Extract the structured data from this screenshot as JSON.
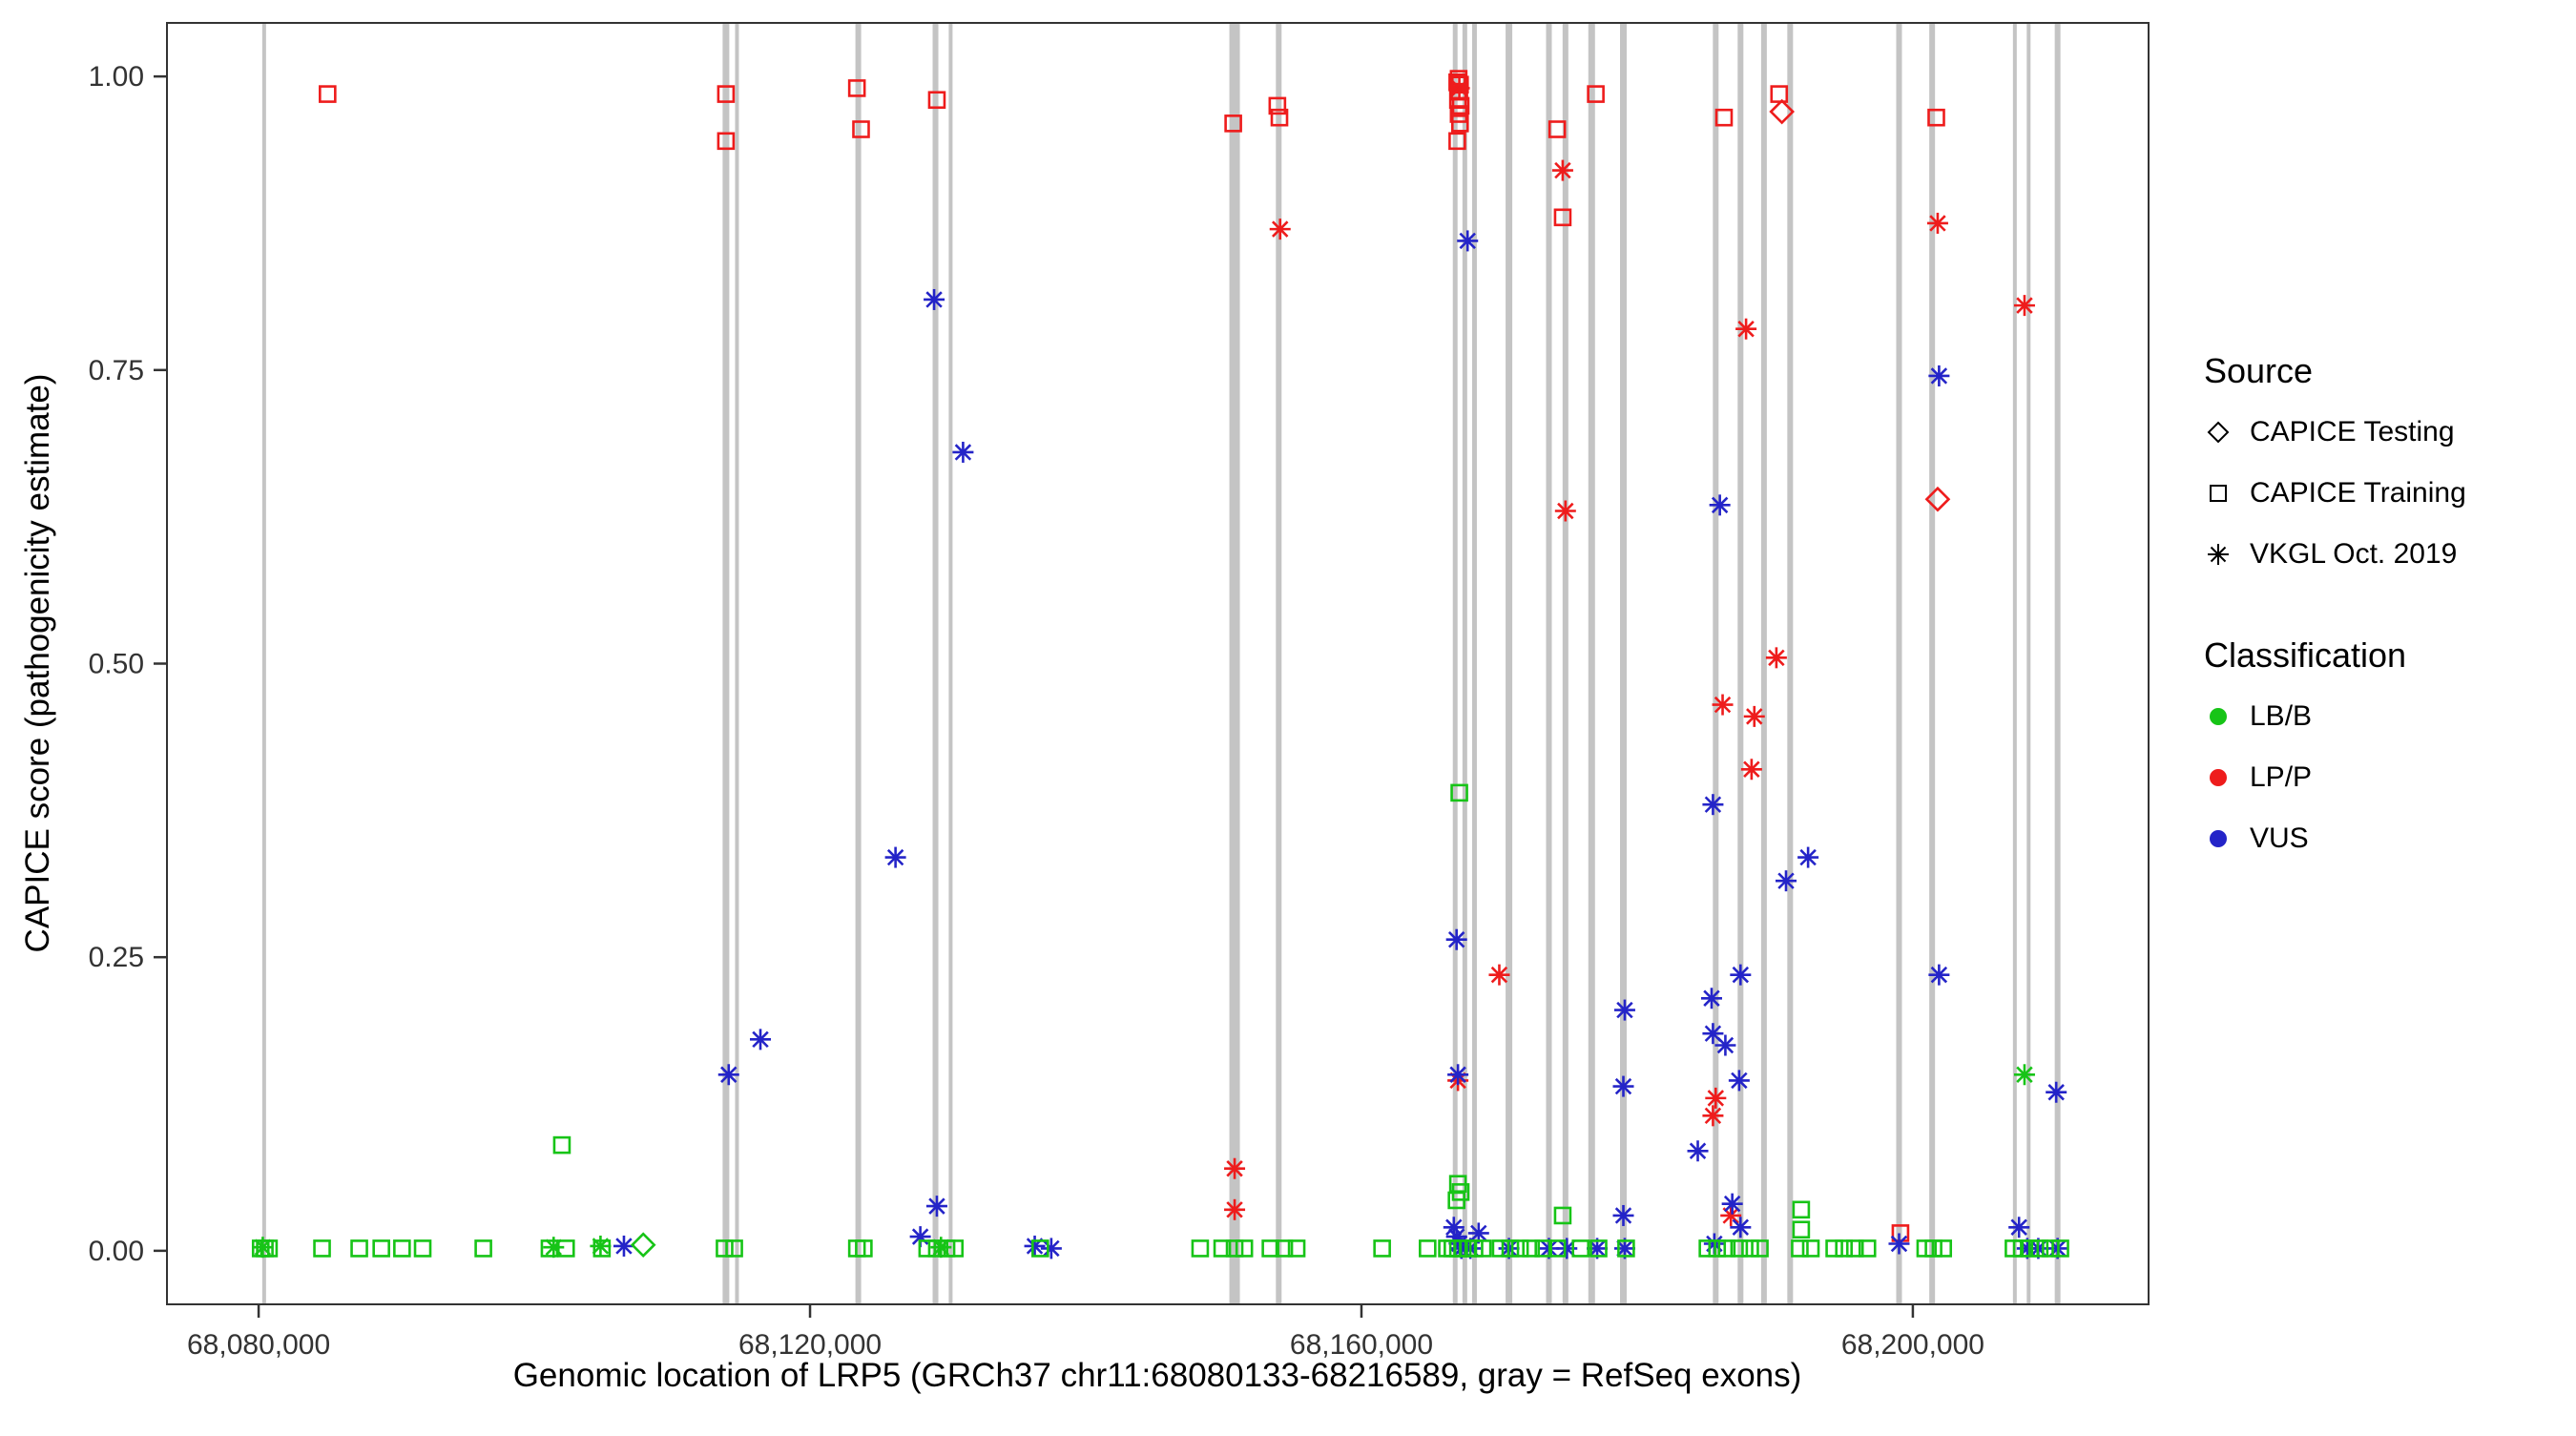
{
  "figure": {
    "x_axis": {
      "title": "Genomic location of LRP5 (GRCh37 chr11:68080133-68216589, gray = RefSeq exons)",
      "ticks": [
        {
          "value": 68080000,
          "label": "68,080,000"
        },
        {
          "value": 68120000,
          "label": "68,120,000"
        },
        {
          "value": 68160000,
          "label": "68,160,000"
        },
        {
          "value": 68200000,
          "label": "68,200,000"
        }
      ]
    },
    "y_axis": {
      "title": "CAPICE score (pathogenicity estimate)",
      "ticks": [
        {
          "value": 0.0,
          "label": "0.00"
        },
        {
          "value": 0.25,
          "label": "0.25"
        },
        {
          "value": 0.5,
          "label": "0.50"
        },
        {
          "value": 0.75,
          "label": "0.75"
        },
        {
          "value": 1.0,
          "label": "1.00"
        }
      ]
    },
    "legend": {
      "source": {
        "title": "Source",
        "items": [
          {
            "label": "CAPICE Testing",
            "glyph": "diamond"
          },
          {
            "label": "CAPICE Training",
            "glyph": "square"
          },
          {
            "label": "VKGL Oct. 2019",
            "glyph": "asterisk"
          }
        ]
      },
      "classification": {
        "title": "Classification",
        "items": [
          {
            "label": "LB/B",
            "color": "#17c417"
          },
          {
            "label": "LP/P",
            "color": "#ee1c1c"
          },
          {
            "label": "VUS",
            "color": "#2424c8"
          }
        ]
      }
    },
    "colors": {
      "exon_gray": "#c4c4c4",
      "panel_border": "#333333",
      "lbb_green": "#17c417",
      "lpp_red": "#ee1c1c",
      "vus_blue": "#2424c8"
    }
  },
  "chart_data": {
    "type": "scatter",
    "title": "",
    "xlabel": "Genomic location of LRP5 (GRCh37 chr11:68080133-68216589, gray = RefSeq exons)",
    "ylabel": "CAPICE score (pathogenicity estimate)",
    "xlim": [
      68073350,
      68217100
    ],
    "ylim": [
      -0.0456,
      1.0456
    ],
    "grid": false,
    "legend_position": "right",
    "exons": [
      [
        68080400,
        4
      ],
      [
        68113900,
        7
      ],
      [
        68114700,
        4
      ],
      [
        68123500,
        6
      ],
      [
        68129100,
        6
      ],
      [
        68130200,
        4
      ],
      [
        68150800,
        11
      ],
      [
        68154000,
        6
      ],
      [
        68166800,
        5
      ],
      [
        68167500,
        5
      ],
      [
        68168200,
        5
      ],
      [
        68170700,
        7
      ],
      [
        68173600,
        6
      ],
      [
        68174800,
        6
      ],
      [
        68176700,
        7
      ],
      [
        68179000,
        7
      ],
      [
        68185700,
        6
      ],
      [
        68187500,
        6
      ],
      [
        68189200,
        6
      ],
      [
        68191100,
        6
      ],
      [
        68199000,
        6
      ],
      [
        68201400,
        6
      ],
      [
        68207400,
        4
      ],
      [
        68208400,
        4
      ],
      [
        68210500,
        6
      ]
    ],
    "points": [
      [
        68085000,
        0.985,
        "training",
        "LP/P"
      ],
      [
        68113900,
        0.985,
        "training",
        "LP/P"
      ],
      [
        68113900,
        0.945,
        "training",
        "LP/P"
      ],
      [
        68123400,
        0.99,
        "training",
        "LP/P"
      ],
      [
        68123700,
        0.955,
        "training",
        "LP/P"
      ],
      [
        68129200,
        0.98,
        "training",
        "LP/P"
      ],
      [
        68150700,
        0.96,
        "training",
        "LP/P"
      ],
      [
        68153900,
        0.975,
        "training",
        "LP/P"
      ],
      [
        68154050,
        0.965,
        "training",
        "LP/P"
      ],
      [
        68166950,
        0.995,
        "training",
        "LP/P"
      ],
      [
        68167050,
        0.998,
        "training",
        "LP/P"
      ],
      [
        68167150,
        0.993,
        "training",
        "LP/P"
      ],
      [
        68167100,
        0.987,
        "training",
        "LP/P"
      ],
      [
        68167000,
        0.98,
        "training",
        "LP/P"
      ],
      [
        68167200,
        0.975,
        "training",
        "LP/P"
      ],
      [
        68167050,
        0.968,
        "training",
        "LP/P"
      ],
      [
        68167150,
        0.96,
        "training",
        "LP/P"
      ],
      [
        68166950,
        0.945,
        "training",
        "LP/P"
      ],
      [
        68174200,
        0.955,
        "training",
        "LP/P"
      ],
      [
        68174600,
        0.88,
        "training",
        "LP/P"
      ],
      [
        68177000,
        0.985,
        "training",
        "LP/P"
      ],
      [
        68186300,
        0.965,
        "training",
        "LP/P"
      ],
      [
        68190300,
        0.985,
        "training",
        "LP/P"
      ],
      [
        68201700,
        0.965,
        "training",
        "LP/P"
      ],
      [
        68199100,
        0.015,
        "training",
        "LP/P"
      ],
      [
        68190500,
        0.97,
        "testing",
        "LP/P"
      ],
      [
        68201800,
        0.64,
        "testing",
        "LP/P"
      ],
      [
        68154100,
        0.87,
        "vkgl",
        "LP/P"
      ],
      [
        68167100,
        0.99,
        "vkgl",
        "LP/P"
      ],
      [
        68174600,
        0.92,
        "vkgl",
        "LP/P"
      ],
      [
        68174800,
        0.63,
        "vkgl",
        "LP/P"
      ],
      [
        68170000,
        0.235,
        "vkgl",
        "LP/P"
      ],
      [
        68167000,
        0.145,
        "vkgl",
        "LP/P"
      ],
      [
        68187900,
        0.785,
        "vkgl",
        "LP/P"
      ],
      [
        68186200,
        0.465,
        "vkgl",
        "LP/P"
      ],
      [
        68188500,
        0.455,
        "vkgl",
        "LP/P"
      ],
      [
        68190100,
        0.505,
        "vkgl",
        "LP/P"
      ],
      [
        68188300,
        0.41,
        "vkgl",
        "LP/P"
      ],
      [
        68185700,
        0.13,
        "vkgl",
        "LP/P"
      ],
      [
        68185500,
        0.115,
        "vkgl",
        "LP/P"
      ],
      [
        68186800,
        0.03,
        "vkgl",
        "LP/P"
      ],
      [
        68201800,
        0.875,
        "vkgl",
        "LP/P"
      ],
      [
        68208100,
        0.805,
        "vkgl",
        "LP/P"
      ],
      [
        68150800,
        0.07,
        "vkgl",
        "LP/P"
      ],
      [
        68150800,
        0.035,
        "vkgl",
        "LP/P"
      ],
      [
        68129000,
        0.81,
        "vkgl",
        "VUS"
      ],
      [
        68131100,
        0.68,
        "vkgl",
        "VUS"
      ],
      [
        68126200,
        0.335,
        "vkgl",
        "VUS"
      ],
      [
        68116400,
        0.18,
        "vkgl",
        "VUS"
      ],
      [
        68114100,
        0.15,
        "vkgl",
        "VUS"
      ],
      [
        68167700,
        0.86,
        "vkgl",
        "VUS"
      ],
      [
        68166900,
        0.265,
        "vkgl",
        "VUS"
      ],
      [
        68167000,
        0.15,
        "vkgl",
        "VUS"
      ],
      [
        68179100,
        0.205,
        "vkgl",
        "VUS"
      ],
      [
        68179000,
        0.14,
        "vkgl",
        "VUS"
      ],
      [
        68186000,
        0.635,
        "vkgl",
        "VUS"
      ],
      [
        68185500,
        0.38,
        "vkgl",
        "VUS"
      ],
      [
        68192400,
        0.335,
        "vkgl",
        "VUS"
      ],
      [
        68190800,
        0.315,
        "vkgl",
        "VUS"
      ],
      [
        68187500,
        0.235,
        "vkgl",
        "VUS"
      ],
      [
        68185400,
        0.215,
        "vkgl",
        "VUS"
      ],
      [
        68185500,
        0.185,
        "vkgl",
        "VUS"
      ],
      [
        68186400,
        0.175,
        "vkgl",
        "VUS"
      ],
      [
        68187400,
        0.145,
        "vkgl",
        "VUS"
      ],
      [
        68184400,
        0.085,
        "vkgl",
        "VUS"
      ],
      [
        68186900,
        0.04,
        "vkgl",
        "VUS"
      ],
      [
        68201900,
        0.745,
        "vkgl",
        "VUS"
      ],
      [
        68201900,
        0.235,
        "vkgl",
        "VUS"
      ],
      [
        68210400,
        0.135,
        "vkgl",
        "VUS"
      ],
      [
        68128000,
        0.012,
        "vkgl",
        "VUS"
      ],
      [
        68129200,
        0.038,
        "vkgl",
        "VUS"
      ],
      [
        68106500,
        0.004,
        "vkgl",
        "VUS"
      ],
      [
        68136300,
        0.004,
        "vkgl",
        "VUS"
      ],
      [
        68137500,
        0.002,
        "vkgl",
        "VUS"
      ],
      [
        68166700,
        0.02,
        "vkgl",
        "VUS"
      ],
      [
        68166900,
        0.012,
        "vkgl",
        "VUS"
      ],
      [
        68167100,
        0.006,
        "vkgl",
        "VUS"
      ],
      [
        68167250,
        0.002,
        "vkgl",
        "VUS"
      ],
      [
        68167900,
        0.002,
        "vkgl",
        "VUS"
      ],
      [
        68168500,
        0.015,
        "vkgl",
        "VUS"
      ],
      [
        68170700,
        0.002,
        "vkgl",
        "VUS"
      ],
      [
        68173600,
        0.002,
        "vkgl",
        "VUS"
      ],
      [
        68174900,
        0.002,
        "vkgl",
        "VUS"
      ],
      [
        68177100,
        0.002,
        "vkgl",
        "VUS"
      ],
      [
        68179000,
        0.03,
        "vkgl",
        "VUS"
      ],
      [
        68179100,
        0.002,
        "vkgl",
        "VUS"
      ],
      [
        68185600,
        0.006,
        "vkgl",
        "VUS"
      ],
      [
        68187500,
        0.02,
        "vkgl",
        "VUS"
      ],
      [
        68199000,
        0.006,
        "vkgl",
        "VUS"
      ],
      [
        68207700,
        0.02,
        "vkgl",
        "VUS"
      ],
      [
        68208300,
        0.002,
        "vkgl",
        "VUS"
      ],
      [
        68209100,
        0.002,
        "vkgl",
        "VUS"
      ],
      [
        68210500,
        0.002,
        "vkgl",
        "VUS"
      ],
      [
        68102000,
        0.09,
        "training",
        "LB/B"
      ],
      [
        68167100,
        0.39,
        "training",
        "LB/B"
      ],
      [
        68167000,
        0.057,
        "training",
        "LB/B"
      ],
      [
        68167200,
        0.05,
        "training",
        "LB/B"
      ],
      [
        68166900,
        0.043,
        "training",
        "LB/B"
      ],
      [
        68174600,
        0.03,
        "training",
        "LB/B"
      ],
      [
        68191900,
        0.035,
        "training",
        "LB/B"
      ],
      [
        68191900,
        0.018,
        "training",
        "LB/B"
      ],
      [
        68208100,
        0.15,
        "vkgl",
        "LB/B"
      ],
      [
        68107900,
        0.005,
        "testing",
        "LB/B"
      ],
      [
        68080300,
        0.003,
        "vkgl",
        "LB/B"
      ],
      [
        68101400,
        0.003,
        "vkgl",
        "LB/B"
      ],
      [
        68104800,
        0.004,
        "vkgl",
        "LB/B"
      ],
      [
        68129500,
        0.003,
        "vkgl",
        "LB/B"
      ],
      [
        68080150,
        0.002,
        "training",
        "LB/B"
      ],
      [
        68080450,
        0.002,
        "training",
        "LB/B"
      ],
      [
        68080750,
        0.002,
        "training",
        "LB/B"
      ],
      [
        68084600,
        0.002,
        "training",
        "LB/B"
      ],
      [
        68087300,
        0.002,
        "training",
        "LB/B"
      ],
      [
        68088900,
        0.002,
        "training",
        "LB/B"
      ],
      [
        68090400,
        0.002,
        "training",
        "LB/B"
      ],
      [
        68091900,
        0.002,
        "training",
        "LB/B"
      ],
      [
        68096300,
        0.002,
        "training",
        "LB/B"
      ],
      [
        68101100,
        0.002,
        "training",
        "LB/B"
      ],
      [
        68102300,
        0.002,
        "training",
        "LB/B"
      ],
      [
        68104900,
        0.002,
        "training",
        "LB/B"
      ],
      [
        68113800,
        0.002,
        "training",
        "LB/B"
      ],
      [
        68114500,
        0.002,
        "training",
        "LB/B"
      ],
      [
        68123400,
        0.002,
        "training",
        "LB/B"
      ],
      [
        68123900,
        0.002,
        "training",
        "LB/B"
      ],
      [
        68128500,
        0.002,
        "training",
        "LB/B"
      ],
      [
        68129200,
        0.002,
        "training",
        "LB/B"
      ],
      [
        68129900,
        0.002,
        "training",
        "LB/B"
      ],
      [
        68130500,
        0.002,
        "training",
        "LB/B"
      ],
      [
        68136700,
        0.002,
        "training",
        "LB/B"
      ],
      [
        68148300,
        0.002,
        "training",
        "LB/B"
      ],
      [
        68149900,
        0.002,
        "training",
        "LB/B"
      ],
      [
        68150800,
        0.002,
        "training",
        "LB/B"
      ],
      [
        68151500,
        0.002,
        "training",
        "LB/B"
      ],
      [
        68153400,
        0.002,
        "training",
        "LB/B"
      ],
      [
        68154400,
        0.002,
        "training",
        "LB/B"
      ],
      [
        68155300,
        0.002,
        "training",
        "LB/B"
      ],
      [
        68161500,
        0.002,
        "training",
        "LB/B"
      ],
      [
        68164800,
        0.002,
        "training",
        "LB/B"
      ],
      [
        68166200,
        0.002,
        "training",
        "LB/B"
      ],
      [
        68166600,
        0.002,
        "training",
        "LB/B"
      ],
      [
        68167000,
        0.002,
        "training",
        "LB/B"
      ],
      [
        68167350,
        0.002,
        "training",
        "LB/B"
      ],
      [
        68167750,
        0.002,
        "training",
        "LB/B"
      ],
      [
        68168200,
        0.002,
        "training",
        "LB/B"
      ],
      [
        68168800,
        0.002,
        "training",
        "LB/B"
      ],
      [
        68170100,
        0.002,
        "training",
        "LB/B"
      ],
      [
        68170800,
        0.002,
        "training",
        "LB/B"
      ],
      [
        68171500,
        0.002,
        "training",
        "LB/B"
      ],
      [
        68172300,
        0.002,
        "training",
        "LB/B"
      ],
      [
        68173200,
        0.002,
        "training",
        "LB/B"
      ],
      [
        68174200,
        0.002,
        "training",
        "LB/B"
      ],
      [
        68175900,
        0.002,
        "training",
        "LB/B"
      ],
      [
        68177200,
        0.002,
        "training",
        "LB/B"
      ],
      [
        68179200,
        0.002,
        "training",
        "LB/B"
      ],
      [
        68185100,
        0.002,
        "training",
        "LB/B"
      ],
      [
        68185800,
        0.002,
        "training",
        "LB/B"
      ],
      [
        68186500,
        0.002,
        "training",
        "LB/B"
      ],
      [
        68187400,
        0.002,
        "training",
        "LB/B"
      ],
      [
        68188200,
        0.002,
        "training",
        "LB/B"
      ],
      [
        68188900,
        0.002,
        "training",
        "LB/B"
      ],
      [
        68191800,
        0.002,
        "training",
        "LB/B"
      ],
      [
        68192600,
        0.002,
        "training",
        "LB/B"
      ],
      [
        68194300,
        0.002,
        "training",
        "LB/B"
      ],
      [
        68195000,
        0.002,
        "training",
        "LB/B"
      ],
      [
        68195800,
        0.002,
        "training",
        "LB/B"
      ],
      [
        68196700,
        0.002,
        "training",
        "LB/B"
      ],
      [
        68200900,
        0.002,
        "training",
        "LB/B"
      ],
      [
        68201500,
        0.002,
        "training",
        "LB/B"
      ],
      [
        68202200,
        0.002,
        "training",
        "LB/B"
      ],
      [
        68207300,
        0.002,
        "training",
        "LB/B"
      ],
      [
        68207900,
        0.002,
        "training",
        "LB/B"
      ],
      [
        68208500,
        0.002,
        "training",
        "LB/B"
      ],
      [
        68209200,
        0.002,
        "training",
        "LB/B"
      ],
      [
        68210000,
        0.002,
        "training",
        "LB/B"
      ],
      [
        68210700,
        0.002,
        "training",
        "LB/B"
      ]
    ]
  }
}
